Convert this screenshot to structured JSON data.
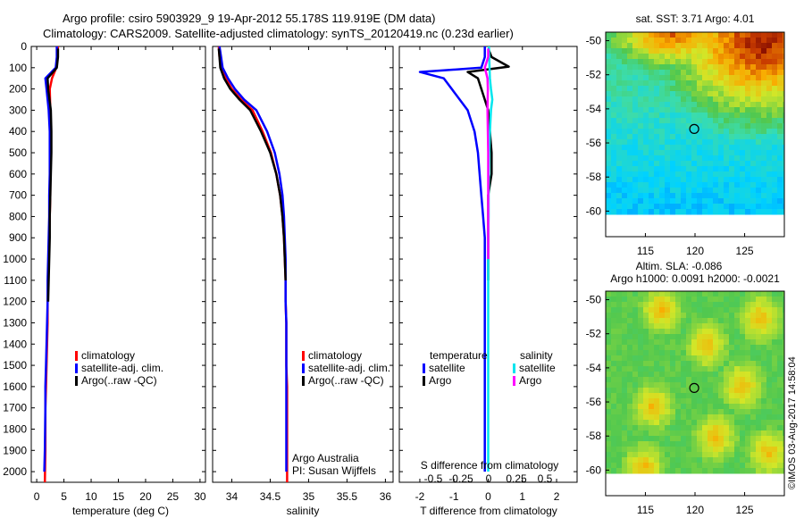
{
  "header": {
    "line1": "Argo profile: csiro 5903929_9 19-Apr-2012 55.178S 119.919E (DM data)",
    "line2": "Climatology: CARS2009. Satellite-adjusted climatology: synTS_20120419.nc (0.23d earlier)"
  },
  "colors": {
    "climatology": "#ff0000",
    "satellite": "#0000ff",
    "argo": "#000000",
    "argo_salinity": "#ff00ff",
    "satellite_salinity": "#00e5ee"
  },
  "credit": "©IMOS 03-Aug-2017 14:58:04",
  "chart_data": [
    {
      "id": "temperature",
      "type": "line",
      "xlabel": "temperature (deg C)",
      "ylabel": "",
      "xlim": [
        -1,
        31
      ],
      "ylim": [
        0,
        2050
      ],
      "y_inverted": true,
      "xticks": [
        0,
        5,
        10,
        15,
        20,
        25,
        30
      ],
      "yticks": [
        0,
        100,
        200,
        300,
        400,
        500,
        600,
        700,
        800,
        900,
        1000,
        1100,
        1200,
        1300,
        1400,
        1500,
        1600,
        1700,
        1800,
        1900,
        2000
      ],
      "legend": [
        "climatology",
        "satellite-adj. clim.",
        "Argo(..raw -QC)"
      ],
      "series": [
        {
          "name": "climatology",
          "color": "#ff0000",
          "x": [
            3.9,
            3.8,
            3.6,
            2.8,
            2.4,
            2.5,
            2.6,
            2.6,
            2.5,
            2.5,
            2.4,
            2.3,
            2.2,
            2.1,
            2.0,
            2.0,
            1.9,
            1.8,
            1.7,
            1.6,
            1.6,
            1.5
          ],
          "y": [
            0,
            50,
            100,
            150,
            200,
            300,
            400,
            500,
            600,
            700,
            800,
            900,
            1000,
            1100,
            1200,
            1300,
            1400,
            1500,
            1600,
            1700,
            1900,
            2050
          ]
        },
        {
          "name": "satellite-adj. clim.",
          "color": "#0000ff",
          "x": [
            3.7,
            3.7,
            3.5,
            1.6,
            1.8,
            2.2,
            2.4,
            2.4,
            2.4,
            2.3,
            2.3,
            2.2,
            2.1,
            2.0,
            2.0,
            1.9,
            1.8,
            1.7,
            1.6,
            1.6,
            1.5,
            1.4
          ],
          "y": [
            0,
            50,
            100,
            150,
            200,
            300,
            400,
            500,
            600,
            700,
            800,
            900,
            1000,
            1100,
            1200,
            1300,
            1400,
            1500,
            1600,
            1700,
            1900,
            2000
          ]
        },
        {
          "name": "Argo(..raw -QC)",
          "color": "#000000",
          "x": [
            3.9,
            3.9,
            3.7,
            2.0,
            2.1,
            2.6,
            2.7,
            2.7,
            2.6,
            2.5,
            2.4,
            2.4,
            2.3,
            2.2,
            2.1
          ],
          "y": [
            10,
            50,
            100,
            150,
            200,
            300,
            400,
            500,
            600,
            700,
            800,
            900,
            1000,
            1100,
            1200
          ]
        }
      ]
    },
    {
      "id": "salinity",
      "type": "line",
      "xlabel": "salinity",
      "ylabel": "",
      "xlim": [
        33.75,
        36.1
      ],
      "ylim": [
        0,
        2050
      ],
      "y_inverted": true,
      "xticks": [
        34,
        34.5,
        35,
        35.5,
        36
      ],
      "legend": [
        "climatology",
        "satellite-adj. clim.",
        "Argo(..raw -QC)"
      ],
      "annotation": [
        "Argo Australia",
        "PI: Susan Wijffels"
      ],
      "series": [
        {
          "name": "climatology",
          "color": "#ff0000",
          "x": [
            33.83,
            33.84,
            33.86,
            33.92,
            34.0,
            34.12,
            34.27,
            34.4,
            34.51,
            34.58,
            34.63,
            34.66,
            34.68,
            34.69,
            34.7,
            34.7,
            34.71,
            34.71,
            34.71,
            34.72,
            34.72,
            34.72
          ],
          "y": [
            0,
            50,
            100,
            150,
            200,
            250,
            300,
            400,
            500,
            600,
            700,
            800,
            900,
            1000,
            1100,
            1200,
            1300,
            1400,
            1500,
            1600,
            1800,
            2050
          ]
        },
        {
          "name": "satellite-adj. clim.",
          "color": "#0000ff",
          "x": [
            33.84,
            33.86,
            33.88,
            33.95,
            34.04,
            34.16,
            34.32,
            34.46,
            34.56,
            34.62,
            34.66,
            34.68,
            34.69,
            34.7,
            34.7,
            34.7,
            34.71,
            34.71,
            34.71,
            34.71,
            34.71,
            34.71
          ],
          "y": [
            0,
            50,
            100,
            150,
            200,
            250,
            300,
            400,
            500,
            600,
            700,
            800,
            900,
            1000,
            1100,
            1200,
            1300,
            1400,
            1500,
            1600,
            1800,
            2000
          ]
        },
        {
          "name": "Argo(..raw -QC)",
          "color": "#000000",
          "x": [
            33.83,
            33.84,
            33.85,
            33.9,
            33.98,
            34.1,
            34.24,
            34.38,
            34.5,
            34.58,
            34.63,
            34.66,
            34.68,
            34.69,
            34.7
          ],
          "y": [
            10,
            50,
            100,
            150,
            200,
            250,
            300,
            400,
            500,
            600,
            700,
            800,
            900,
            1000,
            1100
          ]
        }
      ]
    },
    {
      "id": "difference",
      "type": "line",
      "xlabel": "T difference from climatology",
      "x2label": "S difference from climatology",
      "ylabel": "",
      "xlim": [
        -2.6,
        2.6
      ],
      "ylim": [
        0,
        2050
      ],
      "y_inverted": true,
      "xticks": [
        -2,
        -1,
        0,
        1,
        2
      ],
      "x2ticks": [
        "-0.5",
        "-0.25",
        "0",
        "0.25",
        "0.5"
      ],
      "legend_headers": [
        "temperature",
        "salinity"
      ],
      "legend": [
        "satellite",
        "Argo",
        "satellite",
        "Argo"
      ],
      "series": [
        {
          "name": "satellite",
          "group": "temperature",
          "color": "#0000ff",
          "x": [
            -0.1,
            -0.1,
            -0.2,
            -2.0,
            -1.3,
            -0.6,
            -0.4,
            -0.3,
            -0.25,
            -0.2,
            -0.15,
            -0.1,
            -0.1,
            -0.1,
            -0.1,
            -0.1,
            -0.1,
            -0.1,
            -0.1,
            -0.1,
            -0.1,
            -0.1
          ],
          "y": [
            0,
            50,
            100,
            120,
            150,
            300,
            400,
            500,
            600,
            700,
            800,
            900,
            1000,
            1100,
            1200,
            1300,
            1400,
            1500,
            1600,
            1700,
            1800,
            2000
          ]
        },
        {
          "name": "Argo",
          "group": "temperature",
          "color": "#000000",
          "x": [
            0.0,
            0.1,
            0.6,
            -0.6,
            -0.3,
            0.0,
            0.05,
            0.1,
            0.1,
            0.0,
            0.0,
            0.0,
            0.0,
            0.0
          ],
          "y": [
            10,
            50,
            95,
            120,
            150,
            300,
            400,
            500,
            600,
            700,
            800,
            900,
            1000,
            1100
          ]
        },
        {
          "name": "satellite",
          "group": "salinity",
          "color": "#00e5ee",
          "x": [
            0.02,
            0.03,
            0.04,
            0.05,
            0.08,
            0.12,
            0.08,
            0.05,
            0.03,
            0.02,
            0.01,
            0.01,
            0.0,
            0.0,
            0.0,
            0.0,
            0.0,
            0.0,
            0.0
          ],
          "y": [
            0,
            50,
            100,
            150,
            200,
            250,
            300,
            400,
            500,
            600,
            700,
            800,
            900,
            1000,
            1100,
            1200,
            1300,
            1500,
            2000
          ]
        },
        {
          "name": "Argo",
          "group": "salinity",
          "color": "#ff00ff",
          "x": [
            0.0,
            0.0,
            -0.1,
            -0.02,
            -0.01,
            -0.02,
            -0.01,
            0.0,
            0.0,
            0.0,
            0.0,
            0.0
          ],
          "y": [
            10,
            50,
            100,
            150,
            200,
            300,
            400,
            500,
            600,
            700,
            800,
            1000
          ]
        }
      ]
    },
    {
      "id": "sst-map",
      "type": "heatmap",
      "title": "sat. SST: 3.71  Argo: 4.01",
      "xticks": [
        115,
        120,
        125
      ],
      "yticks": [
        -50,
        -52,
        -54,
        -56,
        -58,
        -60
      ],
      "xlim": [
        111,
        129
      ],
      "ylim": [
        -61.5,
        -49.5
      ],
      "data_extent": {
        "lon": [
          111,
          129
        ],
        "lat": [
          -60,
          -49.5
        ]
      },
      "marker": {
        "lon": 119.919,
        "lat": -55.178
      }
    },
    {
      "id": "sla-map",
      "type": "heatmap",
      "title": "Altim. SLA: -0.086",
      "subtitle": "Argo h1000: 0.0091 h2000: -0.0021",
      "xticks": [
        115,
        120,
        125
      ],
      "yticks": [
        -50,
        -52,
        -54,
        -56,
        -58,
        -60
      ],
      "xlim": [
        111,
        129
      ],
      "ylim": [
        -61.5,
        -49.5
      ],
      "data_extent": {
        "lon": [
          111,
          129
        ],
        "lat": [
          -60,
          -49.5
        ]
      },
      "marker": {
        "lon": 119.919,
        "lat": -55.178
      }
    }
  ]
}
